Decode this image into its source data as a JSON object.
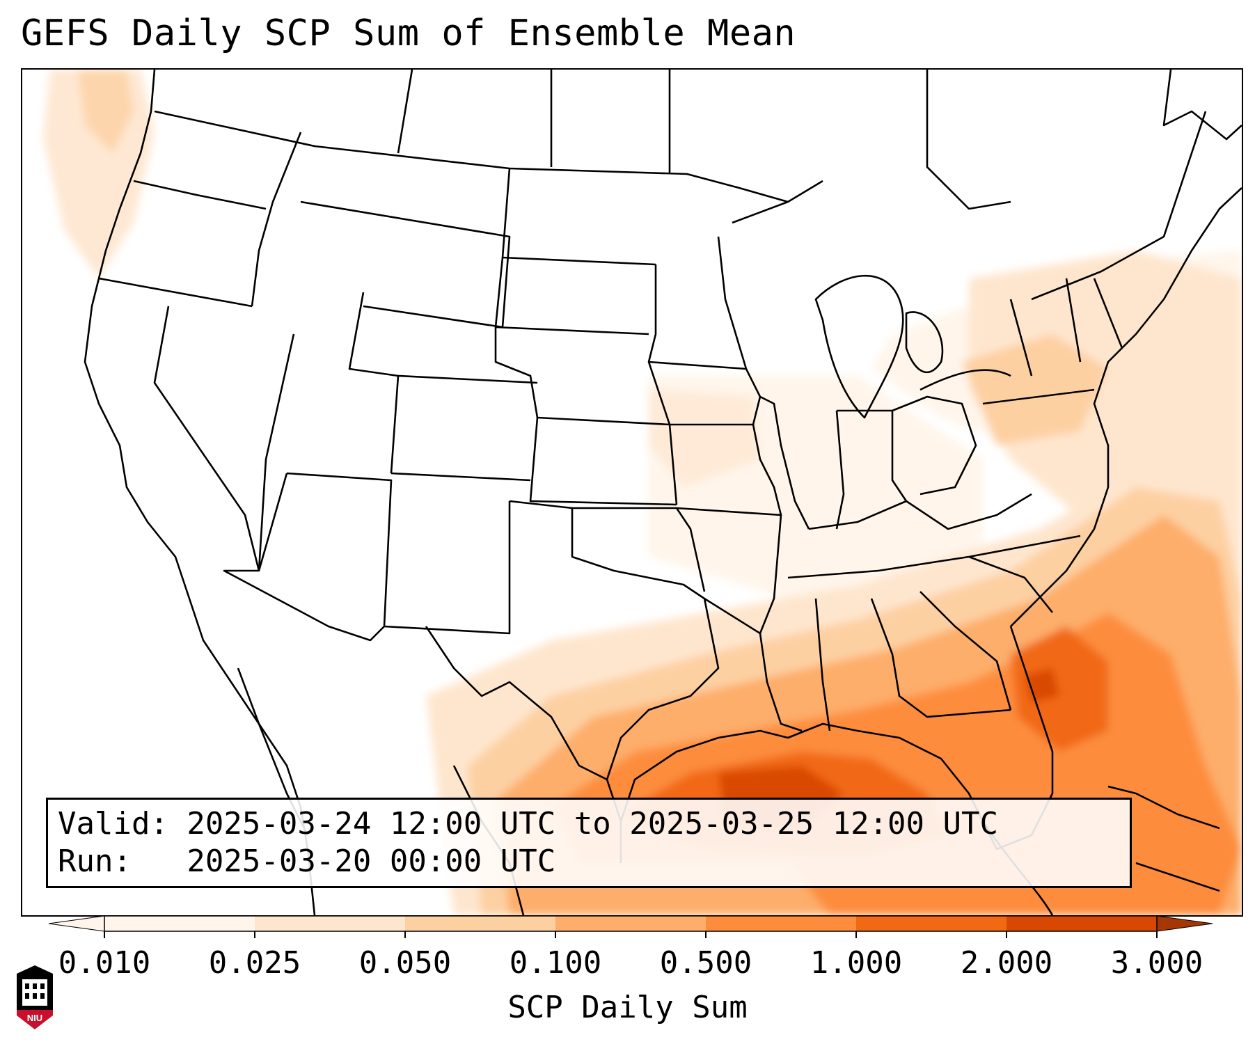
{
  "title": "GEFS Daily SCP Sum of Ensemble Mean",
  "info": {
    "valid_line": "Valid: 2025-03-24 12:00 UTC to 2025-03-25 12:00 UTC",
    "run_line": "Run:   2025-03-20 00:00 UTC"
  },
  "colorbar": {
    "label": "SCP Daily Sum",
    "ticks": [
      "0.010",
      "0.025",
      "0.050",
      "0.100",
      "0.500",
      "1.000",
      "2.000",
      "3.000"
    ],
    "colors": [
      "#fff5eb",
      "#fee6ce",
      "#fdd0a2",
      "#fdae6b",
      "#fd8d3c",
      "#f16913",
      "#d94801",
      "#a63603"
    ],
    "extend": "both"
  },
  "logo": {
    "text": "NIU",
    "colors": {
      "primary": "#c8102e",
      "secondary": "#000000"
    }
  },
  "map": {
    "region": "Continental United States",
    "shading_field": "SCP daily sum",
    "max_region": "Gulf of Mexico and Southeast"
  }
}
